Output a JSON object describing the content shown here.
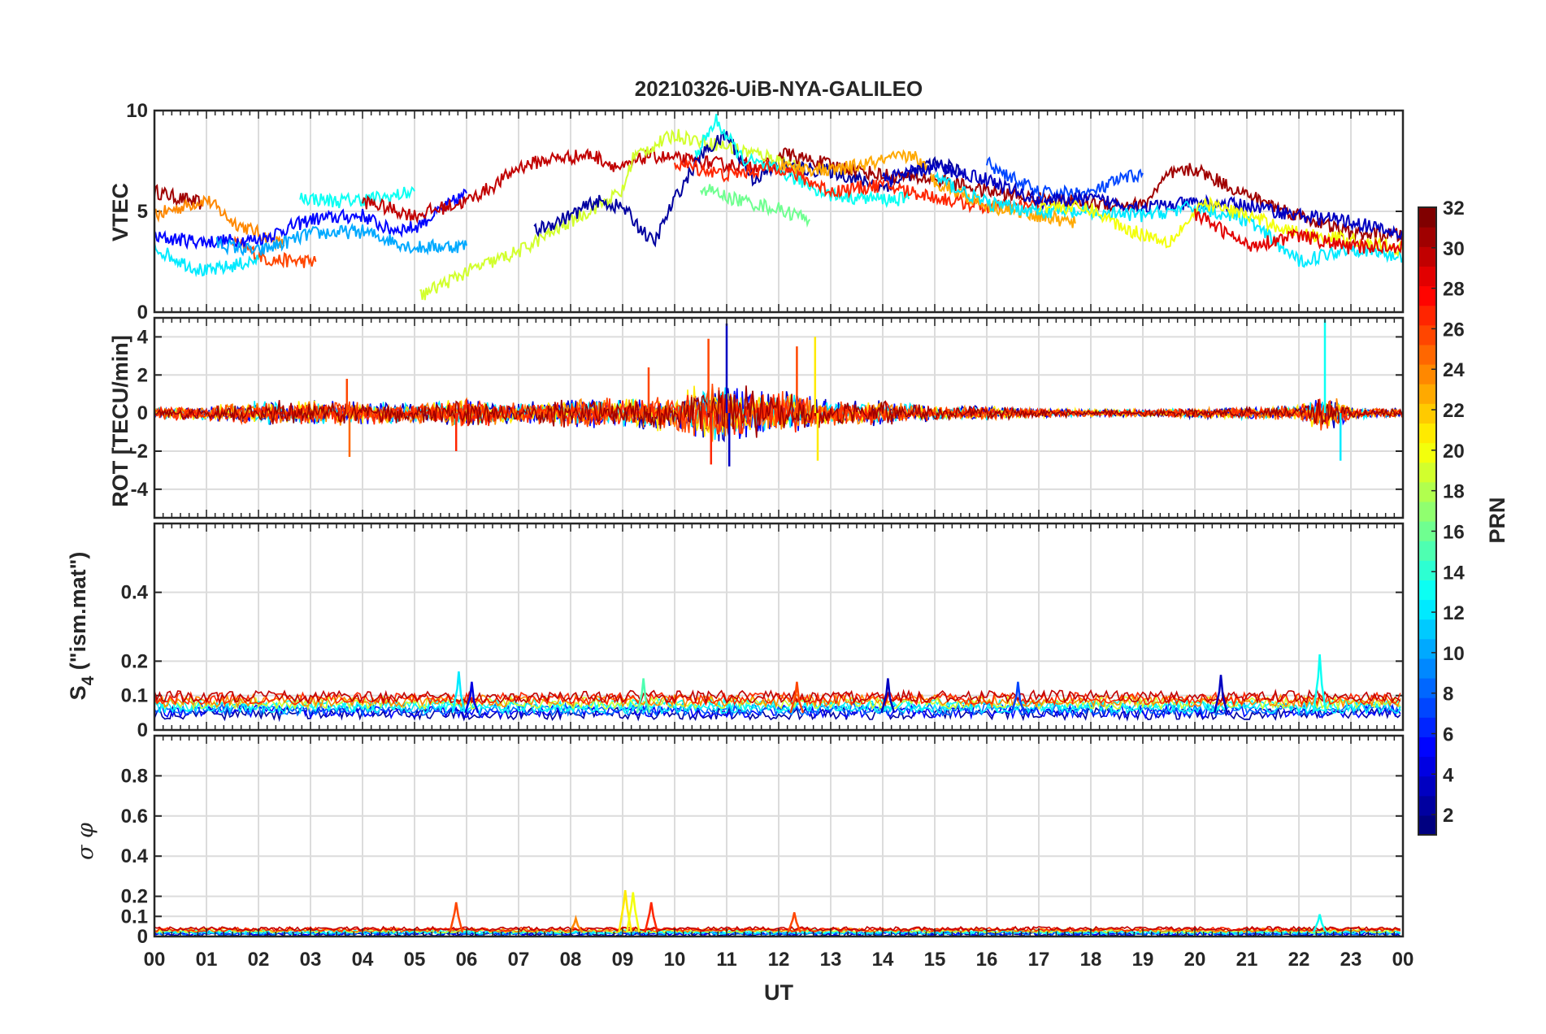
{
  "chart_data": {
    "type": "line",
    "title": "20210326-UiB-NYA-GALILEO",
    "xlabel": "UT",
    "x_ticks": [
      "00",
      "01",
      "02",
      "03",
      "04",
      "05",
      "06",
      "07",
      "08",
      "09",
      "10",
      "11",
      "12",
      "13",
      "14",
      "15",
      "16",
      "17",
      "18",
      "19",
      "20",
      "21",
      "22",
      "23",
      "00"
    ],
    "xlim_hours": [
      0,
      24
    ],
    "panels": [
      {
        "name": "vtec",
        "ylabel": "VTEC",
        "ylim": [
          0,
          10
        ],
        "yticks": [
          0,
          5,
          10
        ],
        "ytick_labels": [
          "0",
          "5",
          "10"
        ],
        "grid": true,
        "series": [
          {
            "prn": 31,
            "x": [
              0,
              0.4,
              0.9
            ],
            "y": [
              6,
              5.7,
              5.4
            ]
          },
          {
            "prn": 24,
            "x": [
              0,
              1,
              1.5,
              2.5
            ],
            "y": [
              4.8,
              5.6,
              4.5,
              3.3
            ]
          },
          {
            "prn": 26,
            "x": [
              1.5,
              2.2,
              3.1
            ],
            "y": [
              3.5,
              2.6,
              2.5
            ]
          },
          {
            "prn": 5,
            "x": [
              0,
              1,
              2,
              3,
              4,
              4.5,
              5,
              6
            ],
            "y": [
              3.7,
              3.5,
              3.6,
              4.6,
              4.8,
              4.1,
              4.2,
              5.9
            ]
          },
          {
            "prn": 12,
            "x": [
              0,
              0.6,
              1,
              2
            ],
            "y": [
              3.2,
              2.4,
              2.0,
              2.6
            ]
          },
          {
            "prn": 10,
            "x": [
              1.2,
              2.0,
              3.0,
              4.0,
              5.0,
              6.0
            ],
            "y": [
              3.4,
              3.0,
              3.9,
              4.0,
              3.2,
              3.3
            ]
          },
          {
            "prn": 13,
            "x": [
              2.8,
              3.5,
              4.5,
              5.0
            ],
            "y": [
              5.7,
              5.5,
              5.7,
              6.0
            ]
          },
          {
            "prn": 30,
            "x": [
              4,
              5,
              6,
              6.6,
              7,
              7.6,
              8.4,
              9,
              9.5,
              10,
              11,
              12
            ],
            "y": [
              5.5,
              4.8,
              5.5,
              6.4,
              7.2,
              7.6,
              7.8,
              7.1,
              7.8,
              7.6,
              7.3,
              7.3
            ]
          },
          {
            "prn": 19,
            "x": [
              5.1,
              6,
              7,
              8,
              9,
              9.2,
              10,
              11,
              12,
              12.5
            ],
            "y": [
              0.8,
              2.0,
              3.0,
              4.5,
              6.0,
              7.7,
              8.8,
              8.2,
              7.6,
              7.0
            ]
          },
          {
            "prn": 2,
            "x": [
              7.3,
              8,
              8.5,
              9,
              9.6,
              10,
              10.5,
              11,
              11.5,
              12,
              13,
              14,
              15,
              15.5
            ],
            "y": [
              4.0,
              4.8,
              5.5,
              5.2,
              3.4,
              5.6,
              7.8,
              8.8,
              6.6,
              7.2,
              7.0,
              6.2,
              7.4,
              7.0
            ]
          },
          {
            "prn": 13,
            "x": [
              10.4,
              10.8,
              11.3,
              12,
              13,
              14,
              14.5
            ],
            "y": [
              7.8,
              9.5,
              7.6,
              7.0,
              5.8,
              5.6,
              5.6
            ]
          },
          {
            "prn": 27,
            "x": [
              10,
              11,
              12,
              13,
              14,
              15,
              16,
              17
            ],
            "y": [
              7.4,
              6.8,
              7.2,
              6.0,
              6.3,
              5.7,
              5.2,
              5.3
            ]
          },
          {
            "prn": 16,
            "x": [
              10.5,
              11,
              12,
              12.6
            ],
            "y": [
              6.2,
              5.7,
              5.1,
              4.6
            ]
          },
          {
            "prn": 31,
            "x": [
              12,
              13,
              14,
              15,
              16,
              17,
              18,
              19,
              19.5,
              20,
              21,
              22,
              23,
              24
            ],
            "y": [
              7.9,
              7.3,
              6.8,
              6.6,
              6.0,
              5.6,
              5.4,
              5.3,
              6.8,
              7.1,
              5.8,
              4.8,
              3.9,
              3.8
            ]
          },
          {
            "prn": 23,
            "x": [
              12,
              13,
              14,
              14.6,
              15,
              16,
              17,
              17.7
            ],
            "y": [
              7.3,
              7.0,
              7.5,
              7.8,
              6.5,
              5.3,
              4.8,
              4.4
            ]
          },
          {
            "prn": 7,
            "x": [
              16,
              17,
              18,
              18.5,
              19.0
            ],
            "y": [
              7.4,
              5.9,
              5.9,
              6.5,
              6.9
            ]
          },
          {
            "prn": 3,
            "x": [
              14,
              15,
              16,
              17,
              18,
              19,
              20,
              21,
              22,
              23,
              24
            ],
            "y": [
              6.6,
              7.2,
              6.6,
              5.5,
              5.6,
              5.2,
              5.4,
              5.3,
              4.8,
              4.5,
              3.8
            ]
          },
          {
            "prn": 12,
            "x": [
              15,
              16,
              17,
              18,
              19,
              20,
              21,
              22,
              23,
              24
            ],
            "y": [
              6.7,
              5.4,
              5.0,
              4.9,
              4.8,
              5.2,
              4.6,
              2.5,
              3.2,
              2.7
            ]
          },
          {
            "prn": 20,
            "x": [
              17,
              18,
              18.7,
              19.5,
              20.2,
              21,
              22,
              23,
              24
            ],
            "y": [
              5.3,
              5.1,
              4.1,
              3.5,
              5.4,
              4.8,
              3.9,
              3.6,
              3.1
            ]
          },
          {
            "prn": 29,
            "x": [
              20,
              21,
              22,
              23,
              24
            ],
            "y": [
              4.9,
              3.3,
              3.8,
              3.2,
              3.3
            ]
          }
        ]
      },
      {
        "name": "rot",
        "ylabel": "ROT [TECU/min]",
        "ylim": [
          -5.5,
          5
        ],
        "yticks": [
          -4,
          -2,
          0,
          2,
          4
        ],
        "ytick_labels": [
          "-4",
          "-2",
          "0",
          "2",
          "4"
        ],
        "grid": true,
        "noise_envelope": {
          "hours": [
            0,
            1,
            2,
            3,
            4,
            5,
            6,
            7,
            8,
            9,
            10,
            10.5,
            11,
            11.5,
            12,
            12.5,
            13,
            14,
            15,
            16,
            17,
            18,
            19,
            20,
            21,
            22,
            22.4,
            22.8,
            23,
            24
          ],
          "amplitude": [
            0.25,
            0.3,
            0.5,
            0.5,
            0.5,
            0.4,
            0.6,
            0.4,
            0.6,
            0.6,
            0.8,
            1.2,
            1.3,
            1.0,
            0.9,
            0.8,
            0.5,
            0.5,
            0.3,
            0.3,
            0.2,
            0.15,
            0.15,
            0.2,
            0.25,
            0.3,
            0.7,
            0.6,
            0.2,
            0.2
          ]
        },
        "spikes": [
          {
            "x": 3.75,
            "y": -2.3,
            "prn": 25
          },
          {
            "x": 3.7,
            "y": 1.8,
            "prn": 26
          },
          {
            "x": 5.8,
            "y": -2.0,
            "prn": 27
          },
          {
            "x": 9.5,
            "y": 2.4,
            "prn": 26
          },
          {
            "x": 10.65,
            "y": 3.9,
            "prn": 26
          },
          {
            "x": 10.7,
            "y": -2.7,
            "prn": 27
          },
          {
            "x": 11.0,
            "y": 4.7,
            "prn": 3
          },
          {
            "x": 11.05,
            "y": -2.8,
            "prn": 3
          },
          {
            "x": 12.35,
            "y": 3.5,
            "prn": 26
          },
          {
            "x": 12.7,
            "y": 4.0,
            "prn": 21
          },
          {
            "x": 12.75,
            "y": -2.5,
            "prn": 21
          },
          {
            "x": 22.5,
            "y": 4.9,
            "prn": 13
          },
          {
            "x": 22.8,
            "y": -2.5,
            "prn": 12
          }
        ]
      },
      {
        "name": "s4",
        "ylabel_main": "S",
        "ylabel_sub": "4",
        "ylabel_rest": " (\"ism.mat\")",
        "ylim": [
          0,
          0.6
        ],
        "yticks": [
          0,
          0.1,
          0.2,
          0.4
        ],
        "ytick_labels": [
          "0",
          "0.1",
          "0.2",
          "0.4"
        ],
        "grid": true,
        "baseline_range": [
          0.03,
          0.1
        ],
        "peaks": [
          {
            "x": 5.85,
            "y": 0.17,
            "prn": 12
          },
          {
            "x": 6.1,
            "y": 0.14,
            "prn": 4
          },
          {
            "x": 9.4,
            "y": 0.15,
            "prn": 15
          },
          {
            "x": 12.35,
            "y": 0.14,
            "prn": 26
          },
          {
            "x": 14.1,
            "y": 0.15,
            "prn": 3
          },
          {
            "x": 16.6,
            "y": 0.14,
            "prn": 7
          },
          {
            "x": 20.5,
            "y": 0.16,
            "prn": 3
          },
          {
            "x": 22.4,
            "y": 0.22,
            "prn": 13
          }
        ]
      },
      {
        "name": "sigma_phi",
        "ylabel": "σ φ",
        "ylim": [
          0,
          1
        ],
        "yticks": [
          0,
          0.1,
          0.2,
          0.4,
          0.6,
          0.8
        ],
        "ytick_labels": [
          "0",
          "0.1",
          "0.2",
          "0.4",
          "0.6",
          "0.8"
        ],
        "grid": true,
        "baseline_range": [
          0.0,
          0.04
        ],
        "peaks": [
          {
            "x": 5.8,
            "y": 0.17,
            "prn": 26
          },
          {
            "x": 8.1,
            "y": 0.09,
            "prn": 24
          },
          {
            "x": 9.05,
            "y": 0.23,
            "prn": 21
          },
          {
            "x": 9.2,
            "y": 0.22,
            "prn": 20
          },
          {
            "x": 9.55,
            "y": 0.17,
            "prn": 27
          },
          {
            "x": 12.3,
            "y": 0.12,
            "prn": 26
          },
          {
            "x": 22.4,
            "y": 0.11,
            "prn": 13
          }
        ]
      }
    ],
    "colorbar": {
      "label": "PRN",
      "min": 1,
      "max": 32,
      "ticks": [
        2,
        4,
        6,
        8,
        10,
        12,
        14,
        16,
        18,
        20,
        22,
        24,
        26,
        28,
        30,
        32
      ],
      "colormap": "jet"
    }
  }
}
